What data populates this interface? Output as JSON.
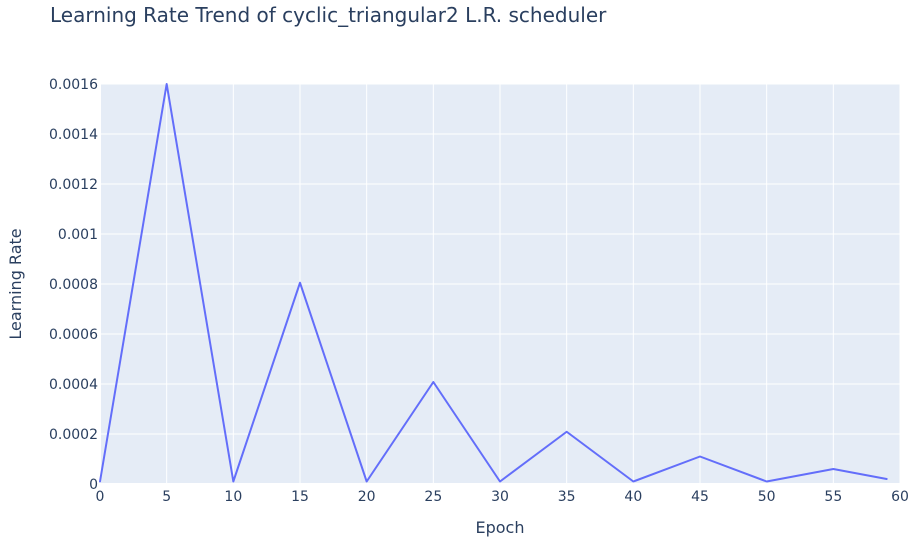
{
  "chart_data": {
    "type": "line",
    "title": "Learning Rate Trend of cyclic_triangular2 L.R. scheduler",
    "xlabel": "Epoch",
    "ylabel": "Learning Rate",
    "xlim": [
      0,
      60
    ],
    "ylim": [
      0,
      0.0016
    ],
    "xticks": [
      0,
      5,
      10,
      15,
      20,
      25,
      30,
      35,
      40,
      45,
      50,
      55,
      60
    ],
    "xtick_labels": [
      "0",
      "5",
      "10",
      "15",
      "20",
      "25",
      "30",
      "35",
      "40",
      "45",
      "50",
      "55",
      "60"
    ],
    "yticks": [
      0,
      0.0002,
      0.0004,
      0.0006,
      0.0008,
      0.001,
      0.0012,
      0.0014,
      0.0016
    ],
    "ytick_labels": [
      "0",
      "0.0002",
      "0.0004",
      "0.0006",
      "0.0008",
      "0.001",
      "0.0012",
      "0.0014",
      "0.0016"
    ],
    "grid": true,
    "series": [
      {
        "x": [
          0,
          5,
          10,
          15,
          20,
          25,
          30,
          35,
          40,
          45,
          50,
          55,
          59
        ],
        "y": [
          1e-05,
          0.0016,
          1e-05,
          0.000805,
          1e-05,
          0.000408,
          1e-05,
          0.000209,
          1e-05,
          0.00011,
          1e-05,
          6e-05,
          2e-05
        ]
      }
    ],
    "colors": {
      "line": "#636efa",
      "plot_background": "#e5ecf6",
      "grid": "#ffffff",
      "text": "#2a3f5f"
    }
  }
}
